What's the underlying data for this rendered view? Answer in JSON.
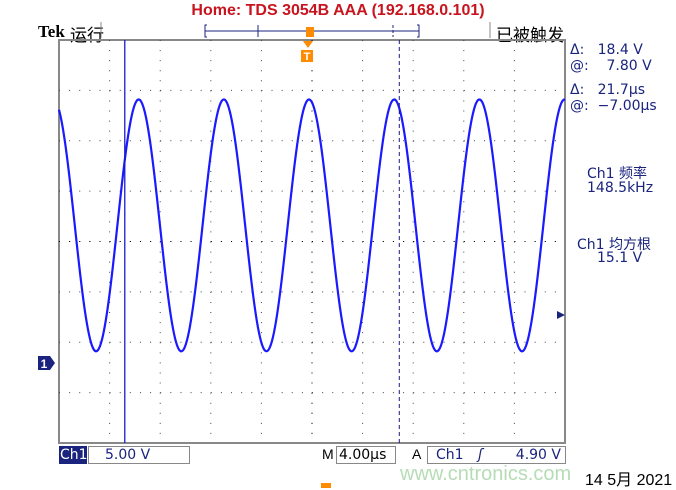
{
  "header": {
    "title": "Home:  TDS 3054B  AAA  (192.168.0.101)",
    "brand": "Tek",
    "run_state": "运行",
    "trigger_state": "已被触发"
  },
  "readouts": {
    "delta_v": "Δ:   18.4 V",
    "at_v": "@:    7.80 V",
    "delta_t": "Δ:   21.7µs",
    "at_t": "@:  −7.00µs",
    "freq_label": "Ch1 频率",
    "freq_value": "148.5kHz",
    "rms_label": "Ch1 均方根",
    "rms_value": "15.1 V"
  },
  "footer": {
    "channel": "Ch1",
    "volts_div": "5.00 V",
    "time_prefix": "M",
    "time_div": "4.00µs",
    "trig_prefix": "A",
    "trig_channel": "Ch1",
    "trig_slope": "ʃ",
    "trig_level": "4.90 V",
    "watermark": "www.cntronics.com",
    "date": "14 5月  2021"
  },
  "markers": {
    "ground": "1",
    "trigger": "T"
  },
  "colors": {
    "trace": "#1a1aff",
    "title": "#c8141e",
    "trigger": "#ff8c00",
    "text": "#1a237e"
  },
  "chart_data": {
    "type": "line",
    "xlabel": "",
    "ylabel": "",
    "xlim_us": [
      -12.2,
      27.8
    ],
    "ylim_v": [
      -8,
      32
    ],
    "x_divisions": 10,
    "y_divisions": 8,
    "grid": true,
    "series": [
      {
        "shape": "sine",
        "frequency_khz": 148.5,
        "max_v": 26.1,
        "min_v": 1.1,
        "peak_time_us": 14.3
      }
    ],
    "cursors": {
      "t1_us": -7.0,
      "t2_us": 14.7
    }
  }
}
